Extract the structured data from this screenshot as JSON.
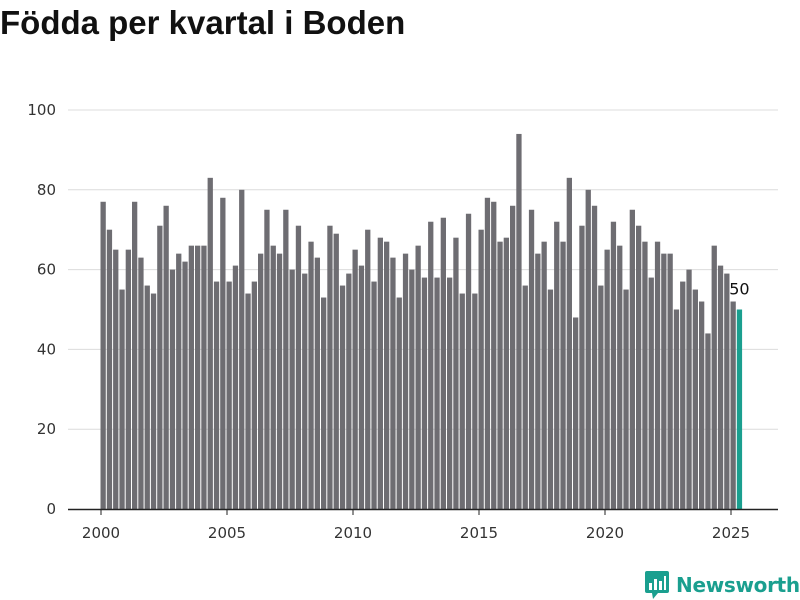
{
  "chart_data": {
    "type": "bar",
    "title": "Födda per kvartal i Boden",
    "xlabel": "",
    "ylabel": "",
    "ylim": [
      0,
      100
    ],
    "yticks": [
      0,
      20,
      40,
      60,
      80,
      100
    ],
    "xticks": [
      2000,
      2005,
      2010,
      2015,
      2020,
      2025
    ],
    "start_year": 2000,
    "quarters_per_year": 4,
    "grid": "horizontal",
    "bar_color": "#6e6d72",
    "highlight_color": "#1a9f8f",
    "highlight_label": "50",
    "values": [
      77,
      70,
      65,
      55,
      65,
      77,
      63,
      56,
      54,
      71,
      76,
      60,
      64,
      62,
      66,
      66,
      66,
      83,
      57,
      78,
      57,
      61,
      80,
      54,
      57,
      64,
      75,
      66,
      64,
      75,
      60,
      71,
      59,
      67,
      63,
      53,
      71,
      69,
      56,
      59,
      65,
      61,
      70,
      57,
      68,
      67,
      63,
      53,
      64,
      60,
      66,
      58,
      72,
      58,
      73,
      58,
      68,
      54,
      74,
      54,
      70,
      78,
      77,
      67,
      68,
      76,
      94,
      56,
      75,
      64,
      67,
      55,
      72,
      67,
      83,
      48,
      71,
      80,
      76,
      56,
      65,
      72,
      66,
      55,
      75,
      71,
      67,
      58,
      67,
      64,
      64,
      50,
      57,
      60,
      55,
      52,
      44,
      66,
      61,
      59,
      52,
      50
    ]
  },
  "brand": {
    "name": "Newsworthy",
    "icon": "newsworthy-logo-icon",
    "color": "#1a9f8f"
  }
}
